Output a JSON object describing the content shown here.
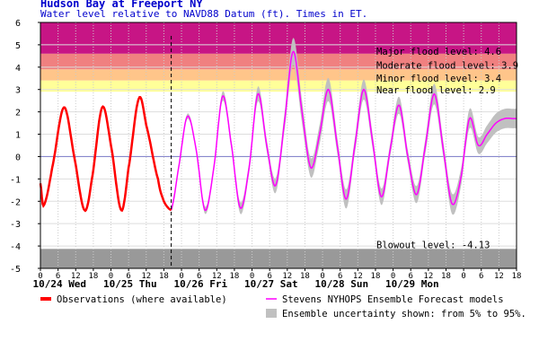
{
  "header": {
    "title": "Hudson Bay at Freeport NY",
    "subtitle": "Water level relative to NAVD88 Datum (ft). Times in ET."
  },
  "colors": {
    "major": "#c71585",
    "moderate": "#f08080",
    "minor": "#ffc58a",
    "near": "#ffff99",
    "blowout": "#999999",
    "observations": "#ff0000",
    "forecast": "#ff00ff",
    "uncertainty": "#c0c0c0"
  },
  "legend": {
    "observations": "Observations (where available)",
    "forecast": "Stevens NYHOPS Ensemble Forecast models",
    "uncertainty": "Ensemble uncertainty shown: from 5% to 95%."
  },
  "chart_data": {
    "type": "line",
    "title": "Hudson Bay at Freeport NY",
    "ylabel": "Water level relative to NAVD88 Datum (ft). Times in ET.",
    "ylim": [
      -5,
      6
    ],
    "xlim_hours": [
      0,
      162
    ],
    "x_unit": "hours since 10/24 00:00 ET",
    "y_ticks": [
      -5,
      -4,
      -3,
      -2,
      -1,
      0,
      1,
      2,
      3,
      4,
      5,
      6
    ],
    "hour_tick_labels": [
      "0",
      "6",
      "12",
      "18",
      "0",
      "6",
      "12",
      "18",
      "0",
      "6",
      "12",
      "18",
      "0",
      "6",
      "12",
      "18",
      "0",
      "6",
      "12",
      "18",
      "0",
      "6",
      "12",
      "18",
      "0",
      "6",
      "12",
      "18"
    ],
    "day_labels": [
      "10/24 Wed",
      "10/25 Thu",
      "10/26 Fri",
      "10/27 Sat",
      "10/28 Sun",
      "10/29 Mon"
    ],
    "observation_end_hour": 44.5,
    "grid": true,
    "thresholds": [
      {
        "name": "Major flood level",
        "label": "Major flood level: 4.6",
        "from": 4.6,
        "to": 6
      },
      {
        "name": "Moderate flood level",
        "label": "Moderate flood level: 3.9",
        "from": 3.9,
        "to": 4.6
      },
      {
        "name": "Minor flood level",
        "label": "Minor flood level: 3.4",
        "from": 3.4,
        "to": 3.9
      },
      {
        "name": "Near flood level",
        "label": "Near flood level: 2.9",
        "from": 2.9,
        "to": 3.4
      },
      {
        "name": "Blowout level",
        "label": "Blowout level: -4.13",
        "from": -5,
        "to": -4.13
      }
    ],
    "observations": {
      "x": [
        0,
        1,
        4,
        8,
        11.5,
        15,
        17.5,
        21,
        24,
        27.5,
        30,
        33.5,
        36,
        40,
        42,
        44.5
      ],
      "y": [
        -1.2,
        -2.2,
        -0.5,
        2.2,
        0.0,
        -2.4,
        -1.0,
        2.2,
        0.5,
        -2.4,
        -0.5,
        2.6,
        1.4,
        -1.0,
        -2.0,
        -2.4
      ]
    },
    "forecast": {
      "x": [
        44.5,
        47,
        50,
        53,
        56,
        59,
        62,
        65,
        68,
        71,
        74,
        77,
        80,
        83,
        86,
        89,
        92,
        95,
        98,
        101,
        104,
        107,
        110,
        113,
        116,
        119,
        122,
        125,
        128,
        131,
        134,
        137,
        140,
        143,
        146,
        149,
        152,
        155,
        158,
        161,
        162
      ],
      "y": [
        -2.4,
        -0.5,
        1.8,
        0.3,
        -2.4,
        -0.5,
        2.7,
        0.5,
        -2.3,
        -0.5,
        2.8,
        0.5,
        -1.3,
        1.5,
        4.7,
        2.0,
        -0.5,
        1.0,
        3.0,
        0.5,
        -1.9,
        0.5,
        3.0,
        0.7,
        -1.8,
        0.3,
        2.3,
        0.0,
        -1.7,
        0.5,
        2.8,
        0.4,
        -2.1,
        -1.0,
        1.7,
        0.5,
        1.0,
        1.5,
        1.7,
        1.7,
        1.7
      ]
    },
    "uncertainty_spread": {
      "x": [
        44.5,
        60,
        80,
        90,
        100,
        120,
        140,
        162
      ],
      "half_width": [
        0.1,
        0.2,
        0.4,
        0.6,
        0.5,
        0.4,
        0.5,
        0.5
      ]
    }
  }
}
